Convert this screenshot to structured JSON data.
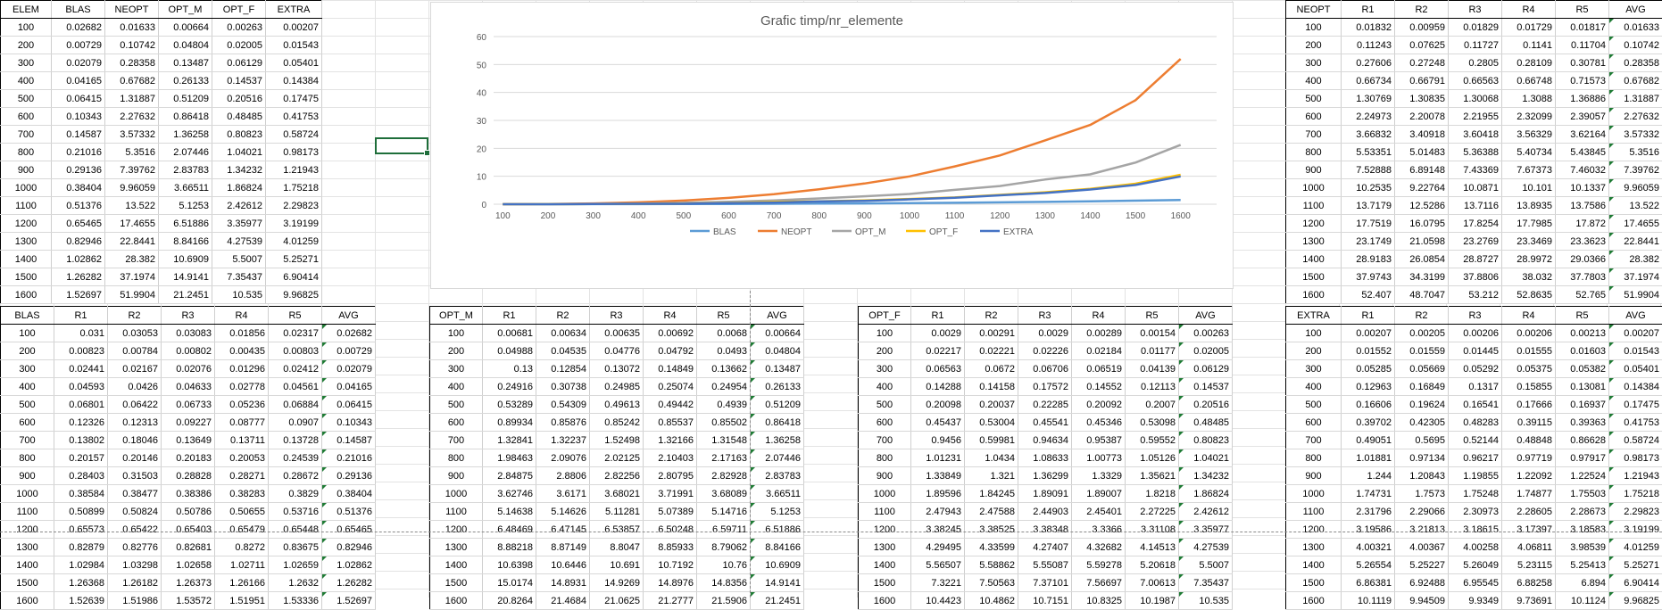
{
  "app": {
    "name": "Spreadsheet"
  },
  "summary_table": {
    "headers": [
      "ELEM",
      "BLAS",
      "NEOPT",
      "OPT_M",
      "OPT_F",
      "EXTRA"
    ],
    "rows": [
      [
        "100",
        "0.02682",
        "0.01633",
        "0.00664",
        "0.00263",
        "0.00207"
      ],
      [
        "200",
        "0.00729",
        "0.10742",
        "0.04804",
        "0.02005",
        "0.01543"
      ],
      [
        "300",
        "0.02079",
        "0.28358",
        "0.13487",
        "0.06129",
        "0.05401"
      ],
      [
        "400",
        "0.04165",
        "0.67682",
        "0.26133",
        "0.14537",
        "0.14384"
      ],
      [
        "500",
        "0.06415",
        "1.31887",
        "0.51209",
        "0.20516",
        "0.17475"
      ],
      [
        "600",
        "0.10343",
        "2.27632",
        "0.86418",
        "0.48485",
        "0.41753"
      ],
      [
        "700",
        "0.14587",
        "3.57332",
        "1.36258",
        "0.80823",
        "0.58724"
      ],
      [
        "800",
        "0.21016",
        "5.3516",
        "2.07446",
        "1.04021",
        "0.98173"
      ],
      [
        "900",
        "0.29136",
        "7.39762",
        "2.83783",
        "1.34232",
        "1.21943"
      ],
      [
        "1000",
        "0.38404",
        "9.96059",
        "3.66511",
        "1.86824",
        "1.75218"
      ],
      [
        "1100",
        "0.51376",
        "13.522",
        "5.1253",
        "2.42612",
        "2.29823"
      ],
      [
        "1200",
        "0.65465",
        "17.4655",
        "6.51886",
        "3.35977",
        "3.19199"
      ],
      [
        "1300",
        "0.82946",
        "22.8441",
        "8.84166",
        "4.27539",
        "4.01259"
      ],
      [
        "1400",
        "1.02862",
        "28.382",
        "10.6909",
        "5.5007",
        "5.25271"
      ],
      [
        "1500",
        "1.26282",
        "37.1974",
        "14.9141",
        "7.35437",
        "6.90414"
      ],
      [
        "1600",
        "1.52697",
        "51.9904",
        "21.2451",
        "10.535",
        "9.96825"
      ]
    ]
  },
  "neopt_table": {
    "headers": [
      "NEOPT",
      "R1",
      "R2",
      "R3",
      "R4",
      "R5",
      "AVG"
    ],
    "rows": [
      [
        "100",
        "0.01832",
        "0.00959",
        "0.01829",
        "0.01729",
        "0.01817",
        "0.01633"
      ],
      [
        "200",
        "0.11243",
        "0.07625",
        "0.11727",
        "0.1141",
        "0.11704",
        "0.10742"
      ],
      [
        "300",
        "0.27606",
        "0.27248",
        "0.2805",
        "0.28109",
        "0.30781",
        "0.28358"
      ],
      [
        "400",
        "0.66734",
        "0.66791",
        "0.66563",
        "0.66748",
        "0.71573",
        "0.67682"
      ],
      [
        "500",
        "1.30769",
        "1.30835",
        "1.30068",
        "1.3088",
        "1.36886",
        "1.31887"
      ],
      [
        "600",
        "2.24973",
        "2.20078",
        "2.21955",
        "2.32099",
        "2.39057",
        "2.27632"
      ],
      [
        "700",
        "3.66832",
        "3.40918",
        "3.60418",
        "3.56329",
        "3.62164",
        "3.57332"
      ],
      [
        "800",
        "5.53351",
        "5.01483",
        "5.36388",
        "5.40734",
        "5.43845",
        "5.3516"
      ],
      [
        "900",
        "7.52888",
        "6.89148",
        "7.43369",
        "7.67373",
        "7.46032",
        "7.39762"
      ],
      [
        "1000",
        "10.2535",
        "9.22764",
        "10.0871",
        "10.101",
        "10.1337",
        "9.96059"
      ],
      [
        "1100",
        "13.7179",
        "12.5286",
        "13.7116",
        "13.8935",
        "13.7586",
        "13.522"
      ],
      [
        "1200",
        "17.7519",
        "16.0795",
        "17.8254",
        "17.7985",
        "17.872",
        "17.4655"
      ],
      [
        "1300",
        "23.1749",
        "21.0598",
        "23.2769",
        "23.3469",
        "23.3623",
        "22.8441"
      ],
      [
        "1400",
        "28.9183",
        "26.0854",
        "28.8727",
        "28.9972",
        "29.0366",
        "28.382"
      ],
      [
        "1500",
        "37.9743",
        "34.3199",
        "37.8806",
        "38.032",
        "37.7803",
        "37.1974"
      ],
      [
        "1600",
        "52.407",
        "48.7047",
        "53.212",
        "52.8635",
        "52.765",
        "51.9904"
      ]
    ]
  },
  "blas_table": {
    "headers": [
      "BLAS",
      "R1",
      "R2",
      "R3",
      "R4",
      "R5",
      "AVG"
    ],
    "rows": [
      [
        "100",
        "0.031",
        "0.03053",
        "0.03083",
        "0.01856",
        "0.02317",
        "0.02682"
      ],
      [
        "200",
        "0.00823",
        "0.00784",
        "0.00802",
        "0.00435",
        "0.00803",
        "0.00729"
      ],
      [
        "300",
        "0.02441",
        "0.02167",
        "0.02076",
        "0.01296",
        "0.02412",
        "0.02079"
      ],
      [
        "400",
        "0.04593",
        "0.0426",
        "0.04633",
        "0.02778",
        "0.04561",
        "0.04165"
      ],
      [
        "500",
        "0.06801",
        "0.06422",
        "0.06733",
        "0.05236",
        "0.06884",
        "0.06415"
      ],
      [
        "600",
        "0.12326",
        "0.12313",
        "0.09227",
        "0.08777",
        "0.0907",
        "0.10343"
      ],
      [
        "700",
        "0.13802",
        "0.18046",
        "0.13649",
        "0.13711",
        "0.13728",
        "0.14587"
      ],
      [
        "800",
        "0.20157",
        "0.20146",
        "0.20183",
        "0.20053",
        "0.24539",
        "0.21016"
      ],
      [
        "900",
        "0.28403",
        "0.31503",
        "0.28828",
        "0.28271",
        "0.28672",
        "0.29136"
      ],
      [
        "1000",
        "0.38584",
        "0.38477",
        "0.38386",
        "0.38283",
        "0.3829",
        "0.38404"
      ],
      [
        "1100",
        "0.50899",
        "0.50824",
        "0.50786",
        "0.50655",
        "0.53716",
        "0.51376"
      ],
      [
        "1200",
        "0.65573",
        "0.65422",
        "0.65403",
        "0.65479",
        "0.65448",
        "0.65465"
      ],
      [
        "1300",
        "0.82879",
        "0.82776",
        "0.82681",
        "0.8272",
        "0.83675",
        "0.82946"
      ],
      [
        "1400",
        "1.02984",
        "1.03298",
        "1.02658",
        "1.02711",
        "1.02659",
        "1.02862"
      ],
      [
        "1500",
        "1.26368",
        "1.26182",
        "1.26373",
        "1.26166",
        "1.2632",
        "1.26282"
      ],
      [
        "1600",
        "1.52639",
        "1.51986",
        "1.53572",
        "1.51951",
        "1.53336",
        "1.52697"
      ]
    ]
  },
  "optm_table": {
    "headers": [
      "OPT_M",
      "R1",
      "R2",
      "R3",
      "R4",
      "R5",
      "AVG"
    ],
    "rows": [
      [
        "100",
        "0.00681",
        "0.00634",
        "0.00635",
        "0.00692",
        "0.0068",
        "0.00664"
      ],
      [
        "200",
        "0.04988",
        "0.04535",
        "0.04776",
        "0.04792",
        "0.0493",
        "0.04804"
      ],
      [
        "300",
        "0.13",
        "0.12854",
        "0.13072",
        "0.14849",
        "0.13662",
        "0.13487"
      ],
      [
        "400",
        "0.24916",
        "0.30738",
        "0.24985",
        "0.25074",
        "0.24954",
        "0.26133"
      ],
      [
        "500",
        "0.53289",
        "0.54309",
        "0.49613",
        "0.49442",
        "0.4939",
        "0.51209"
      ],
      [
        "600",
        "0.89934",
        "0.85876",
        "0.85242",
        "0.85537",
        "0.85502",
        "0.86418"
      ],
      [
        "700",
        "1.32841",
        "1.32237",
        "1.52498",
        "1.32166",
        "1.31548",
        "1.36258"
      ],
      [
        "800",
        "1.98463",
        "2.09076",
        "2.02125",
        "2.10403",
        "2.17163",
        "2.07446"
      ],
      [
        "900",
        "2.84875",
        "2.8806",
        "2.82256",
        "2.80795",
        "2.82928",
        "2.83783"
      ],
      [
        "1000",
        "3.62746",
        "3.6171",
        "3.68021",
        "3.71991",
        "3.68089",
        "3.66511"
      ],
      [
        "1100",
        "5.14638",
        "5.14626",
        "5.11281",
        "5.07389",
        "5.14716",
        "5.1253"
      ],
      [
        "1200",
        "6.48469",
        "6.47145",
        "6.53857",
        "6.50248",
        "6.59711",
        "6.51886"
      ],
      [
        "1300",
        "8.88218",
        "8.87149",
        "8.8047",
        "8.85933",
        "8.79062",
        "8.84166"
      ],
      [
        "1400",
        "10.6398",
        "10.6446",
        "10.691",
        "10.7192",
        "10.76",
        "10.6909"
      ],
      [
        "1500",
        "15.0174",
        "14.8931",
        "14.9269",
        "14.8976",
        "14.8356",
        "14.9141"
      ],
      [
        "1600",
        "20.8264",
        "21.4684",
        "21.0625",
        "21.2777",
        "21.5906",
        "21.2451"
      ]
    ]
  },
  "optf_table": {
    "headers": [
      "OPT_F",
      "R1",
      "R2",
      "R3",
      "R4",
      "R5",
      "AVG"
    ],
    "rows": [
      [
        "100",
        "0.0029",
        "0.00291",
        "0.0029",
        "0.00289",
        "0.00154",
        "0.00263"
      ],
      [
        "200",
        "0.02217",
        "0.02221",
        "0.02226",
        "0.02184",
        "0.01177",
        "0.02005"
      ],
      [
        "300",
        "0.06563",
        "0.0672",
        "0.06706",
        "0.06519",
        "0.04139",
        "0.06129"
      ],
      [
        "400",
        "0.14288",
        "0.14158",
        "0.17572",
        "0.14552",
        "0.12113",
        "0.14537"
      ],
      [
        "500",
        "0.20098",
        "0.20037",
        "0.22285",
        "0.20092",
        "0.2007",
        "0.20516"
      ],
      [
        "600",
        "0.45437",
        "0.53004",
        "0.45541",
        "0.45346",
        "0.53098",
        "0.48485"
      ],
      [
        "700",
        "0.9456",
        "0.59981",
        "0.94634",
        "0.95387",
        "0.59552",
        "0.80823"
      ],
      [
        "800",
        "1.01231",
        "1.0434",
        "1.08633",
        "1.00773",
        "1.05126",
        "1.04021"
      ],
      [
        "900",
        "1.33849",
        "1.321",
        "1.36299",
        "1.3329",
        "1.35621",
        "1.34232"
      ],
      [
        "1000",
        "1.89596",
        "1.84245",
        "1.89091",
        "1.89007",
        "1.8218",
        "1.86824"
      ],
      [
        "1100",
        "2.47943",
        "2.47588",
        "2.44903",
        "2.45401",
        "2.27225",
        "2.42612"
      ],
      [
        "1200",
        "3.38245",
        "3.38525",
        "3.38348",
        "3.3366",
        "3.31108",
        "3.35977"
      ],
      [
        "1300",
        "4.29495",
        "4.33599",
        "4.27407",
        "4.32682",
        "4.14513",
        "4.27539"
      ],
      [
        "1400",
        "5.56507",
        "5.58862",
        "5.55087",
        "5.59278",
        "5.20618",
        "5.5007"
      ],
      [
        "1500",
        "7.3221",
        "7.50563",
        "7.37101",
        "7.56697",
        "7.00613",
        "7.35437"
      ],
      [
        "1600",
        "10.4423",
        "10.4862",
        "10.7151",
        "10.8325",
        "10.1987",
        "10.535"
      ]
    ]
  },
  "extra_table": {
    "headers": [
      "EXTRA",
      "R1",
      "R2",
      "R3",
      "R4",
      "R5",
      "AVG"
    ],
    "rows": [
      [
        "100",
        "0.00207",
        "0.00205",
        "0.00206",
        "0.00206",
        "0.00213",
        "0.00207"
      ],
      [
        "200",
        "0.01552",
        "0.01559",
        "0.01445",
        "0.01555",
        "0.01603",
        "0.01543"
      ],
      [
        "300",
        "0.05285",
        "0.05669",
        "0.05292",
        "0.05375",
        "0.05382",
        "0.05401"
      ],
      [
        "400",
        "0.12963",
        "0.16849",
        "0.1317",
        "0.15855",
        "0.13081",
        "0.14384"
      ],
      [
        "500",
        "0.16606",
        "0.19624",
        "0.16541",
        "0.17666",
        "0.16937",
        "0.17475"
      ],
      [
        "600",
        "0.39702",
        "0.42305",
        "0.48283",
        "0.39115",
        "0.39363",
        "0.41753"
      ],
      [
        "700",
        "0.49051",
        "0.5695",
        "0.52144",
        "0.48848",
        "0.86628",
        "0.58724"
      ],
      [
        "800",
        "1.01881",
        "0.97134",
        "0.96217",
        "0.97719",
        "0.97917",
        "0.98173"
      ],
      [
        "900",
        "1.244",
        "1.20843",
        "1.19855",
        "1.22092",
        "1.22524",
        "1.21943"
      ],
      [
        "1000",
        "1.74731",
        "1.7573",
        "1.75248",
        "1.74877",
        "1.75503",
        "1.75218"
      ],
      [
        "1100",
        "2.31796",
        "2.29066",
        "2.30973",
        "2.28605",
        "2.28673",
        "2.29823"
      ],
      [
        "1200",
        "3.19586",
        "3.21813",
        "3.18615",
        "3.17397",
        "3.18583",
        "3.19199"
      ],
      [
        "1300",
        "4.00321",
        "4.00367",
        "4.00258",
        "4.06811",
        "3.98539",
        "4.01259"
      ],
      [
        "1400",
        "5.26554",
        "5.25227",
        "5.26049",
        "5.23115",
        "5.25413",
        "5.25271"
      ],
      [
        "1500",
        "6.86381",
        "6.92488",
        "6.95545",
        "6.88258",
        "6.894",
        "6.90414"
      ],
      [
        "1600",
        "10.1119",
        "9.94509",
        "9.9349",
        "9.73691",
        "10.1124",
        "9.96825"
      ]
    ]
  },
  "chart_data": {
    "type": "line",
    "title": "Grafic timp/nr_elemente",
    "x": [
      100,
      200,
      300,
      400,
      500,
      600,
      700,
      800,
      900,
      1000,
      1100,
      1200,
      1300,
      1400,
      1500,
      1600
    ],
    "ylim": [
      0,
      60
    ],
    "yticks": [
      0,
      10,
      20,
      30,
      40,
      50,
      60
    ],
    "grid": true,
    "legend_position": "bottom",
    "series": [
      {
        "name": "BLAS",
        "color": "#5b9bd5",
        "values": [
          0.02682,
          0.00729,
          0.02079,
          0.04165,
          0.06415,
          0.10343,
          0.14587,
          0.21016,
          0.29136,
          0.38404,
          0.51376,
          0.65465,
          0.82946,
          1.02862,
          1.26282,
          1.52697
        ]
      },
      {
        "name": "NEOPT",
        "color": "#ed7d31",
        "values": [
          0.01633,
          0.10742,
          0.28358,
          0.67682,
          1.31887,
          2.27632,
          3.57332,
          5.3516,
          7.39762,
          9.96059,
          13.522,
          17.4655,
          22.8441,
          28.382,
          37.1974,
          51.9904
        ]
      },
      {
        "name": "OPT_M",
        "color": "#a5a5a5",
        "values": [
          0.00664,
          0.04804,
          0.13487,
          0.26133,
          0.51209,
          0.86418,
          1.36258,
          2.07446,
          2.83783,
          3.66511,
          5.1253,
          6.51886,
          8.84166,
          10.6909,
          14.9141,
          21.2451
        ]
      },
      {
        "name": "OPT_F",
        "color": "#ffc000",
        "values": [
          0.00263,
          0.02005,
          0.06129,
          0.14537,
          0.20516,
          0.48485,
          0.80823,
          1.04021,
          1.34232,
          1.86824,
          2.42612,
          3.35977,
          4.27539,
          5.5007,
          7.35437,
          10.535
        ]
      },
      {
        "name": "EXTRA",
        "color": "#4472c4",
        "values": [
          0.00207,
          0.01543,
          0.05401,
          0.14384,
          0.17475,
          0.41753,
          0.58724,
          0.98173,
          1.21943,
          1.75218,
          2.29823,
          3.19199,
          4.01259,
          5.25271,
          6.90414,
          9.96825
        ]
      }
    ]
  }
}
